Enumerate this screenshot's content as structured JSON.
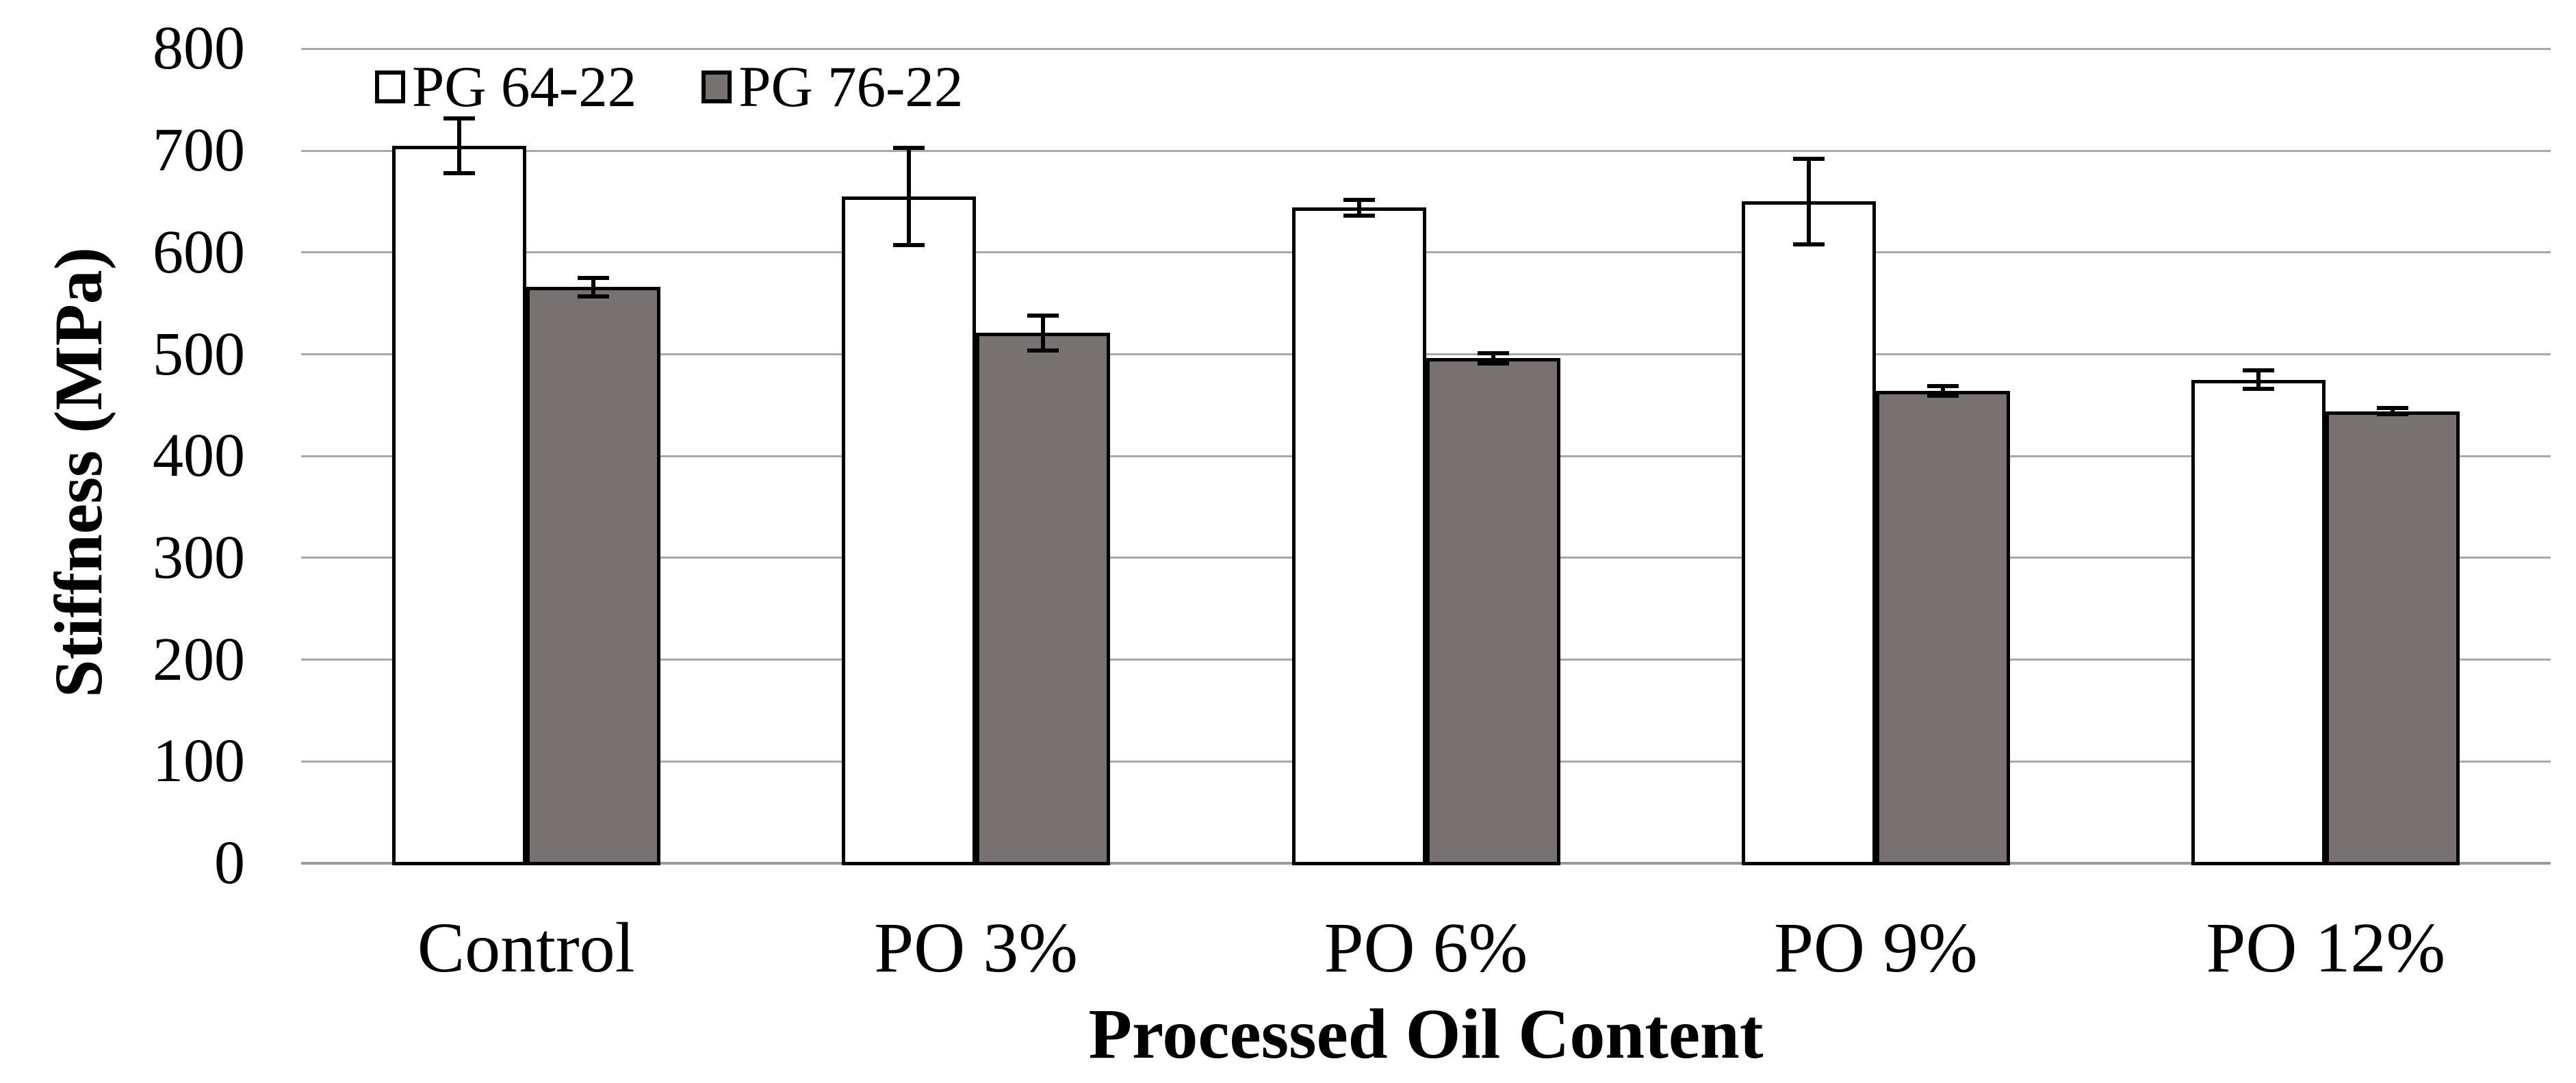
{
  "chart_data": {
    "type": "bar",
    "title": "",
    "categories": [
      "Control",
      "PO 3%",
      "PO 6%",
      "PO 9%",
      "PO 12%"
    ],
    "series": [
      {
        "name": "PG 64-22",
        "fill": "#ffffff",
        "values": [
          705,
          655,
          644,
          650,
          475
        ],
        "error_bars": [
          27,
          48,
          8,
          42,
          9
        ]
      },
      {
        "name": "PG 76-22",
        "fill": "#777171",
        "values": [
          566,
          521,
          496,
          464,
          444
        ],
        "error_bars": [
          9,
          17,
          5,
          5,
          3
        ]
      }
    ],
    "xlabel": "Processed Oil Content",
    "ylabel": "Stiffness (MPa)",
    "ylim": [
      0,
      800
    ],
    "yticks": [
      0,
      100,
      200,
      300,
      400,
      500,
      600,
      700,
      800
    ],
    "grid": true,
    "legend_position": "top-left-inside",
    "colors": {
      "bar_border": "#000000",
      "error_bar": "#000000",
      "gridline": "#a8a8a8",
      "axis_line": "#999999",
      "text": "#000000",
      "background": "#ffffff"
    }
  }
}
